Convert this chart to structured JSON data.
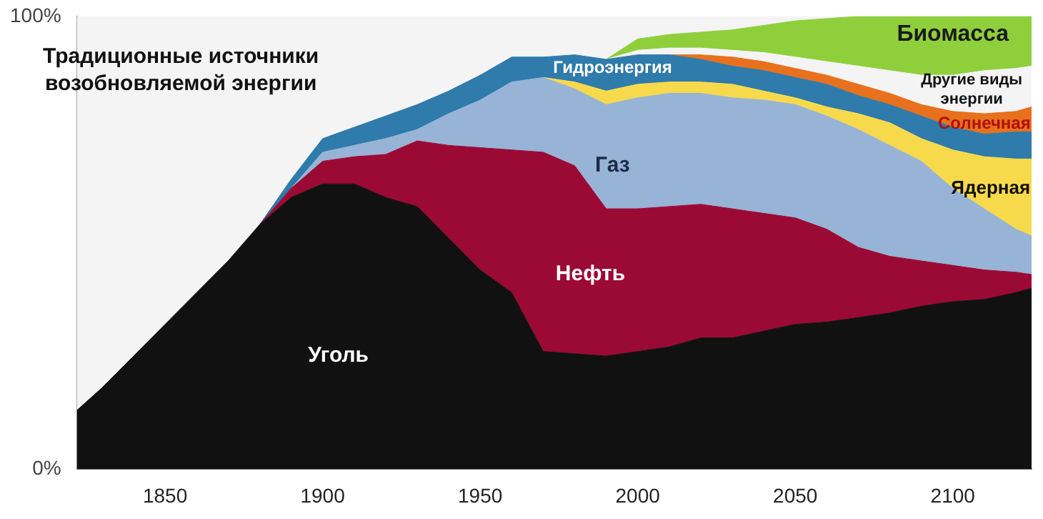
{
  "chart_data": {
    "type": "area",
    "stacked": true,
    "legend": false,
    "grid": false,
    "x": [
      1822,
      1830,
      1840,
      1850,
      1860,
      1870,
      1880,
      1890,
      1900,
      1910,
      1920,
      1930,
      1940,
      1950,
      1960,
      1970,
      1980,
      1990,
      2000,
      2010,
      2020,
      2030,
      2040,
      2050,
      2060,
      2070,
      2080,
      2090,
      2100,
      2110,
      2120,
      2125
    ],
    "xlim": [
      1822,
      2125
    ],
    "xticks": [
      1850,
      1900,
      1950,
      2000,
      2050,
      2100
    ],
    "ylim": [
      0,
      100
    ],
    "yticks": [
      {
        "value": 0,
        "label": "0%"
      },
      {
        "value": 100,
        "label": "100%"
      }
    ],
    "series": [
      {
        "name": "Уголь",
        "color": "#111111",
        "values": [
          13,
          18,
          25,
          32,
          39,
          46,
          54,
          60,
          63,
          63,
          60,
          58,
          51,
          44,
          39,
          26,
          25.5,
          25,
          26,
          27,
          29,
          29,
          30.5,
          32,
          32.5,
          33.5,
          34.5,
          36,
          37,
          37.5,
          39,
          40
        ]
      },
      {
        "name": "Нефть",
        "color": "#9b0a35",
        "values": [
          null,
          null,
          null,
          null,
          null,
          null,
          0,
          2,
          5,
          6,
          9.5,
          14.5,
          20.5,
          27,
          31.5,
          44,
          41.5,
          32.5,
          31.5,
          31,
          29.5,
          28.5,
          26,
          23.5,
          20.5,
          15.5,
          12.5,
          10,
          8,
          6.5,
          4.5,
          3
        ]
      },
      {
        "name": "Газ",
        "color": "#97b3d6",
        "values": [
          null,
          null,
          null,
          null,
          null,
          null,
          null,
          0,
          2,
          2.5,
          3.5,
          2.5,
          7,
          10.5,
          15,
          16.5,
          17,
          23,
          24.5,
          25,
          24.5,
          24.5,
          25,
          25,
          25,
          26,
          24.5,
          22,
          17,
          13.5,
          9.5,
          8.5
        ]
      },
      {
        "name": "Ядерная",
        "color": "#f7d94c",
        "values": [
          null,
          null,
          null,
          null,
          null,
          null,
          null,
          null,
          null,
          null,
          null,
          null,
          null,
          null,
          null,
          0,
          1.5,
          3,
          3,
          2.5,
          2.5,
          3,
          2,
          1.5,
          2,
          3.5,
          5,
          5,
          8.5,
          11.5,
          15.5,
          17
        ]
      },
      {
        "name": "Гидроэнергия",
        "color": "#2f7bab",
        "values": [
          null,
          null,
          null,
          null,
          null,
          null,
          0,
          2,
          3,
          4,
          5,
          5.5,
          5,
          5.5,
          5.5,
          4.5,
          6,
          7,
          6.5,
          6,
          5,
          4,
          4.5,
          4.5,
          5,
          4,
          4,
          5,
          5,
          5,
          6,
          6
        ]
      },
      {
        "name": "Солнечная",
        "color": "#e8711d",
        "values": [
          null,
          null,
          null,
          null,
          null,
          null,
          null,
          null,
          null,
          null,
          null,
          null,
          null,
          null,
          null,
          null,
          null,
          null,
          null,
          0,
          1,
          2,
          2,
          2,
          2,
          2.5,
          2.5,
          2.5,
          3.5,
          4.5,
          4.5,
          5.5
        ]
      },
      {
        "name": "Другие виды энергии",
        "color": "#f4f4f4",
        "values": [
          null,
          null,
          null,
          null,
          null,
          null,
          null,
          null,
          null,
          null,
          null,
          null,
          null,
          null,
          null,
          null,
          null,
          0,
          1,
          1.5,
          1.5,
          1.5,
          2,
          2.5,
          3,
          4,
          5,
          6.5,
          8,
          9.5,
          9.5,
          9
        ]
      },
      {
        "name": "Биомасса",
        "color": "#8fcf3c",
        "values": [
          null,
          null,
          null,
          null,
          null,
          null,
          null,
          null,
          null,
          null,
          null,
          null,
          null,
          null,
          null,
          null,
          null,
          0,
          2.5,
          3,
          3.5,
          4.5,
          6,
          8,
          9.5,
          11,
          12,
          13,
          13,
          12,
          11.5,
          11
        ]
      },
      {
        "name": "Традиционные источники возобновляемой энергии",
        "color": "#f4f4f4",
        "values": [
          87,
          82,
          75,
          68,
          61,
          54,
          46,
          36,
          27,
          24.5,
          22,
          19.5,
          16.5,
          13,
          9,
          9,
          8.5,
          9.5,
          5,
          4,
          3.5,
          3,
          2,
          1,
          0.5,
          0,
          null,
          null,
          null,
          null,
          null,
          null
        ]
      }
    ]
  }
}
